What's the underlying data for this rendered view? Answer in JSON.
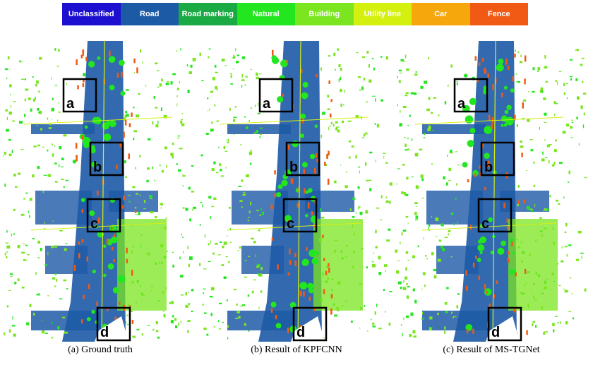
{
  "legend": [
    {
      "label": "Unclassified",
      "color": "#1c0fd0"
    },
    {
      "label": "Road",
      "color": "#1d5aa6"
    },
    {
      "label": "Road marking",
      "color": "#1aaa44"
    },
    {
      "label": "Natural",
      "color": "#22e61f"
    },
    {
      "label": "Building",
      "color": "#7be620"
    },
    {
      "label": "Utility line",
      "color": "#d4f00f"
    },
    {
      "label": "Car",
      "color": "#f5a70c"
    },
    {
      "label": "Fence",
      "color": "#f05a14"
    }
  ],
  "panels": [
    {
      "caption": "(a) Ground truth",
      "boxes": [
        "a",
        "b",
        "c",
        "d"
      ]
    },
    {
      "caption": "(b) Result of KPFCNN",
      "boxes": [
        "a",
        "b",
        "c",
        "d"
      ]
    },
    {
      "caption": "(c) Result of MS-TGNet",
      "boxes": [
        "a",
        "b",
        "c",
        "d"
      ]
    }
  ]
}
